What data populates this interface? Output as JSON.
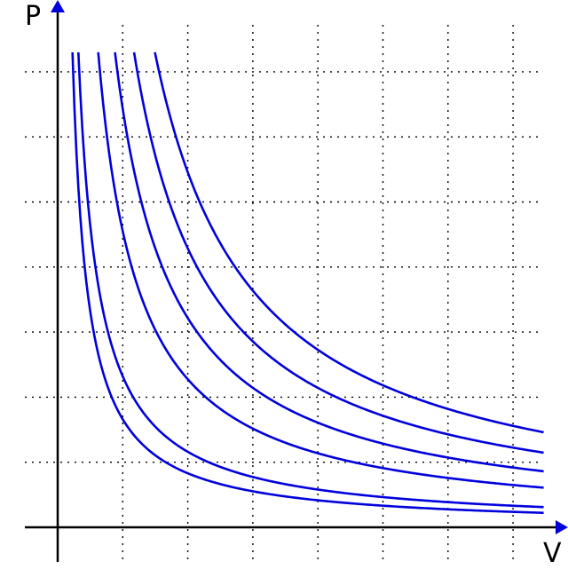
{
  "chart_data": {
    "type": "line",
    "title": "",
    "xlabel": "V",
    "ylabel": "P",
    "xlim": [
      0,
      7.6
    ],
    "ylim": [
      0,
      7.6
    ],
    "grid": true,
    "grid_style": "dotted",
    "x_grid": [
      1,
      2,
      3,
      4,
      5,
      6,
      7
    ],
    "y_grid": [
      1,
      2,
      3,
      4,
      5,
      6,
      7
    ],
    "ticks_labeled": false,
    "legend": "none",
    "curve_relation": "P*V = constant",
    "colors": {
      "curves": "#0000dd",
      "axes": "#000000",
      "grid": "#000000"
    },
    "series": [
      {
        "pv": 1.66
      },
      {
        "pv": 2.32
      },
      {
        "pv": 4.55
      },
      {
        "pv": 6.43
      },
      {
        "pv": 8.57
      },
      {
        "pv": 10.91
      }
    ]
  }
}
